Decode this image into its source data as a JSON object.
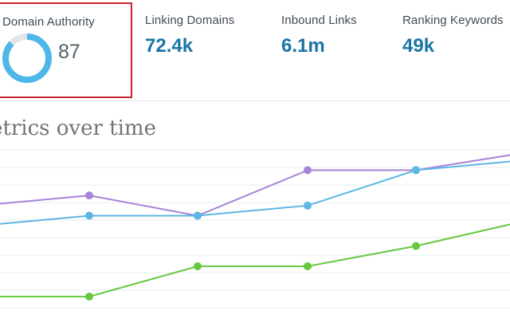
{
  "metrics": [
    {
      "label": "Domain Authority",
      "value": "87",
      "progress": 0.87
    },
    {
      "label": "Linking Domains",
      "value": "72.4k"
    },
    {
      "label": "Inbound Links",
      "value": "6.1m"
    },
    {
      "label": "Ranking Keywords",
      "value": "49k"
    }
  ],
  "section_title": "etrics over time",
  "colors": {
    "accent_blue": "#1b75a5",
    "ring_blue": "#4db8e8",
    "ring_track": "#e3e6e8",
    "highlight_border": "#c8262c",
    "series_purple": "#a883d8",
    "series_blue": "#5db6e3",
    "series_green": "#66c841",
    "grid": "#e6ecef"
  },
  "chart_data": {
    "type": "line",
    "x": [
      0,
      1,
      2,
      3,
      4,
      5
    ],
    "y_range": [
      0,
      10
    ],
    "grid": true,
    "series": [
      {
        "values": [
          6.6,
          7.0,
          6.2,
          8.0,
          8.0,
          8.7
        ]
      },
      {
        "values": [
          5.8,
          6.2,
          6.2,
          6.6,
          8.0,
          8.4
        ]
      },
      {
        "values": [
          3.0,
          3.0,
          4.2,
          4.2,
          5.0,
          6.0
        ]
      }
    ]
  }
}
